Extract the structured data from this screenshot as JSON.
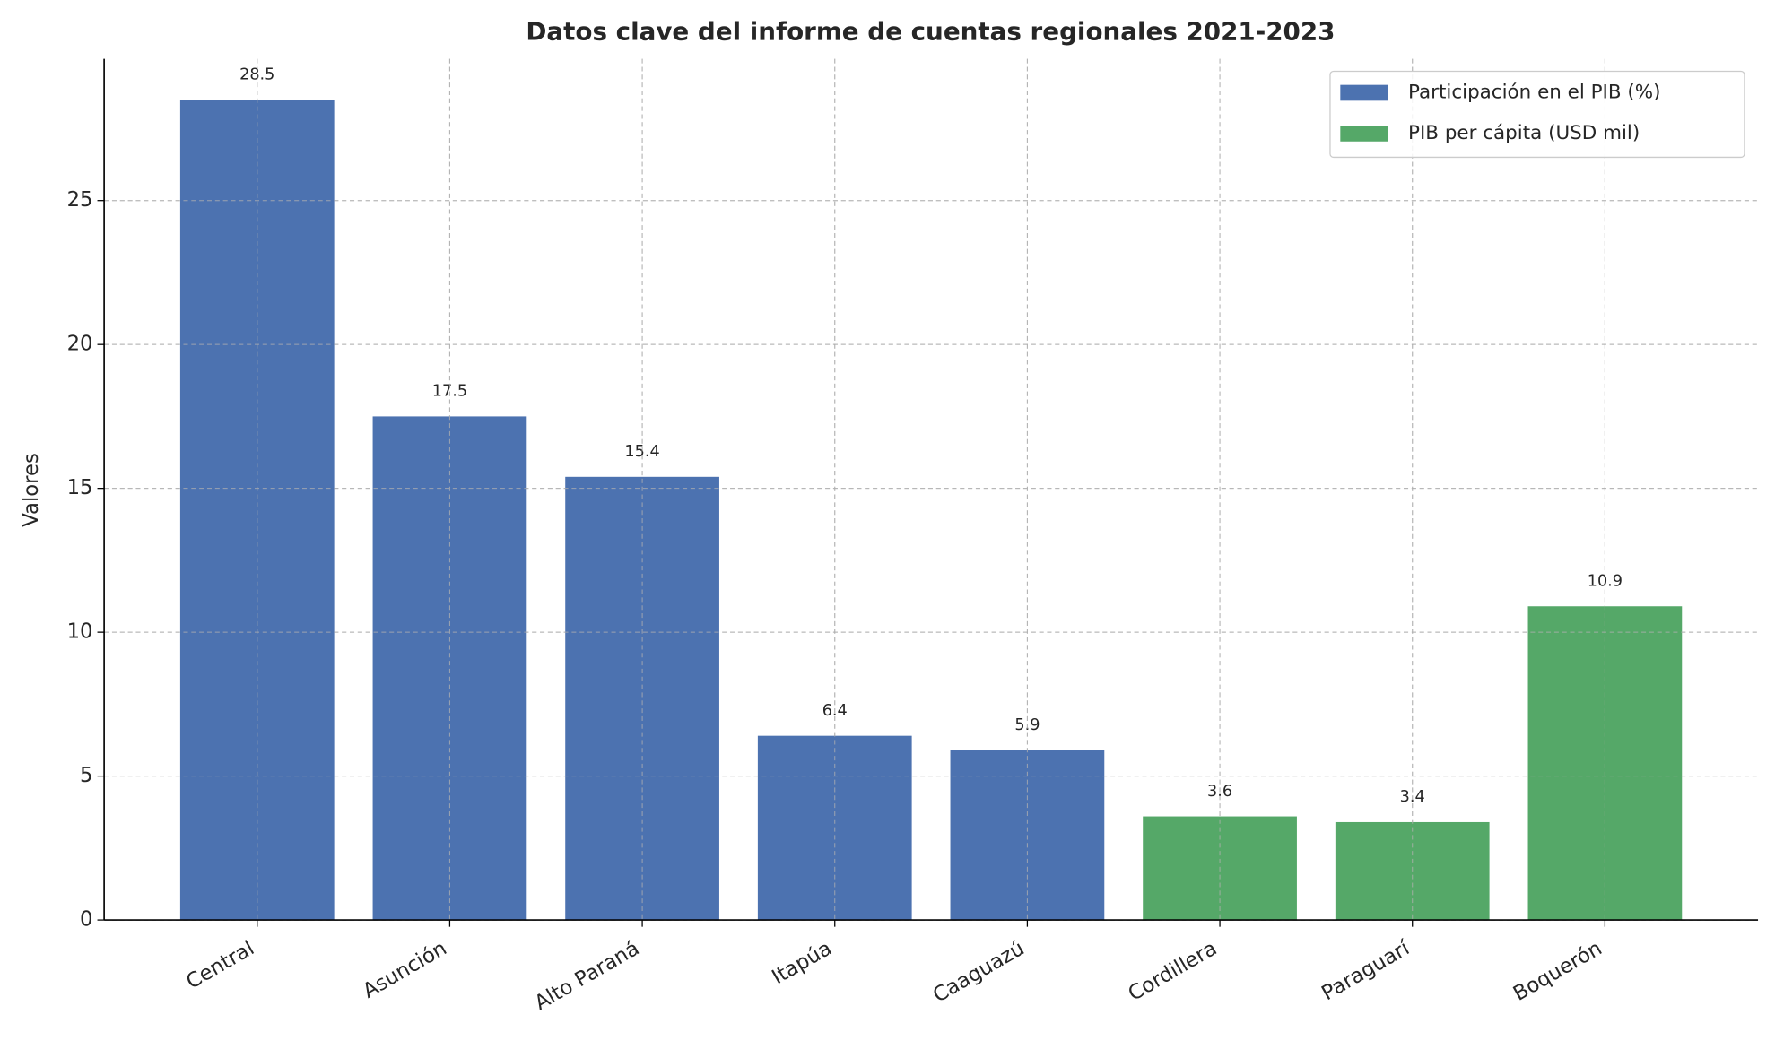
{
  "chart_data": {
    "type": "bar",
    "title": "Datos clave del informe de cuentas regionales 2021-2023",
    "ylabel": "Valores",
    "categories": [
      "Central",
      "Asunción",
      "Alto Paraná",
      "Itapúa",
      "Caaguazú",
      "Cordillera",
      "Paraguarí",
      "Boquerón"
    ],
    "series": [
      {
        "name": "Participación en el PIB (%)",
        "color": "#4c72b0",
        "values": [
          28.5,
          17.5,
          15.4,
          6.4,
          5.9,
          null,
          null,
          null
        ]
      },
      {
        "name": "PIB per cápita (USD mil)",
        "color": "#55a868",
        "values": [
          null,
          null,
          null,
          null,
          null,
          3.6,
          3.4,
          10.9
        ]
      }
    ],
    "ylim": [
      0,
      29.925
    ],
    "yticks": [
      0,
      5,
      10,
      15,
      20,
      25
    ],
    "grid": true,
    "legend": "upper right"
  }
}
